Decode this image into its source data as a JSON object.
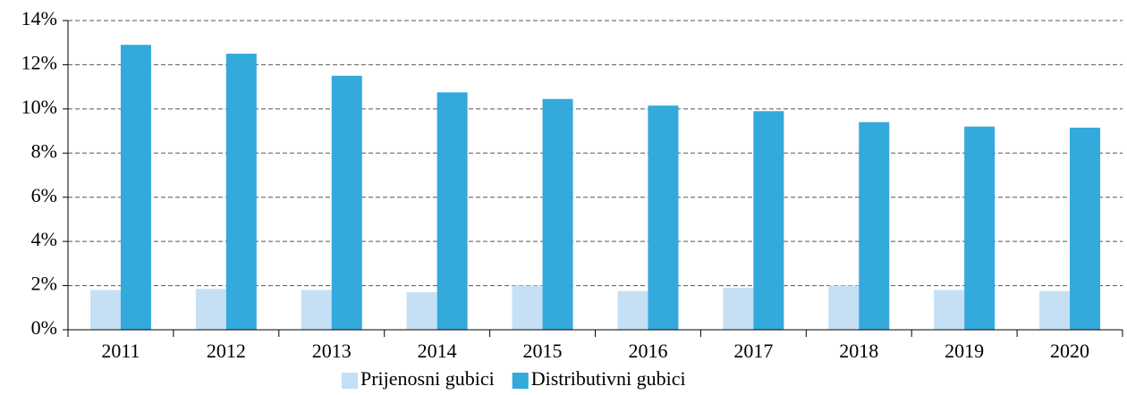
{
  "chart_data": {
    "type": "bar",
    "categories": [
      "2011",
      "2012",
      "2013",
      "2014",
      "2015",
      "2016",
      "2017",
      "2018",
      "2019",
      "2020"
    ],
    "series": [
      {
        "name": "Prijenosni gubici",
        "color": "#c5e0f4",
        "values": [
          1.8,
          1.85,
          1.8,
          1.7,
          2.0,
          1.75,
          1.9,
          2.0,
          1.8,
          1.75
        ]
      },
      {
        "name": "Distributivni gubici",
        "color": "#33a9dc",
        "values": [
          12.9,
          12.5,
          11.5,
          10.75,
          10.45,
          10.15,
          9.9,
          9.4,
          9.2,
          9.15
        ]
      }
    ],
    "ylim": [
      0,
      14
    ],
    "yticks": [
      {
        "value": 0,
        "label": "0%"
      },
      {
        "value": 2,
        "label": "2%"
      },
      {
        "value": 4,
        "label": "4%"
      },
      {
        "value": 6,
        "label": "6%"
      },
      {
        "value": 8,
        "label": "8%"
      },
      {
        "value": 10,
        "label": "10%"
      },
      {
        "value": 12,
        "label": "12%"
      },
      {
        "value": 14,
        "label": "14%"
      }
    ],
    "grid": true,
    "legend": "bottom"
  }
}
